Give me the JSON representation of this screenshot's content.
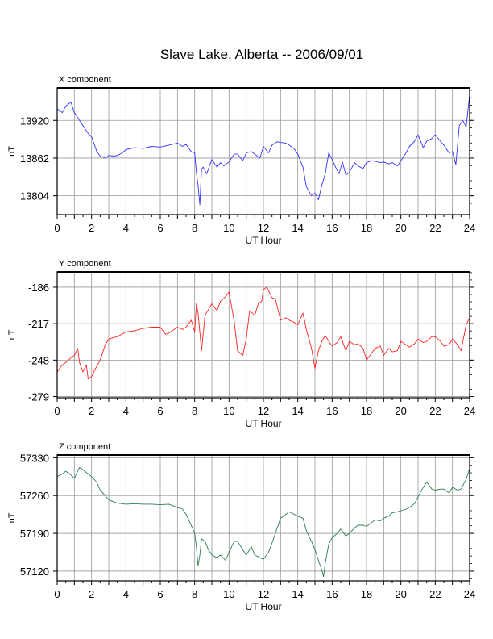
{
  "title": "Slave Lake, Alberta -- 2006/09/01",
  "colors": {
    "x": "#3333ff",
    "y": "#ff2222",
    "z": "#2e7d4f",
    "grid": "#999999"
  },
  "chart_data": [
    {
      "type": "line",
      "title": "X component",
      "xlabel": "UT Hour",
      "ylabel": "nT",
      "xlim": [
        0,
        24
      ],
      "ylim": [
        13775,
        13970
      ],
      "xticks": [
        0,
        2,
        4,
        6,
        8,
        10,
        12,
        14,
        16,
        18,
        20,
        22,
        24
      ],
      "yticks": [
        13804,
        13862,
        13920
      ],
      "grid": true,
      "series": [
        {
          "color": "#3333ff",
          "x": [
            0.0,
            0.3,
            0.5,
            0.8,
            1.0,
            1.3,
            1.5,
            1.8,
            2.0,
            2.3,
            2.5,
            2.8,
            3.0,
            3.3,
            3.5,
            3.8,
            4.0,
            4.5,
            5.0,
            5.5,
            6.0,
            6.5,
            7.0,
            7.3,
            7.5,
            7.8,
            8.0,
            8.1,
            8.2,
            8.3,
            8.4,
            8.5,
            8.7,
            9.0,
            9.3,
            9.5,
            9.7,
            10.0,
            10.3,
            10.5,
            10.8,
            11.0,
            11.3,
            11.5,
            11.8,
            12.0,
            12.3,
            12.5,
            12.8,
            13.0,
            13.3,
            13.5,
            13.8,
            14.0,
            14.3,
            14.5,
            14.8,
            15.0,
            15.2,
            15.4,
            15.6,
            15.8,
            16.0,
            16.2,
            16.4,
            16.6,
            16.8,
            17.0,
            17.3,
            17.5,
            17.8,
            18.0,
            18.3,
            18.5,
            18.8,
            19.0,
            19.3,
            19.5,
            19.8,
            20.0,
            20.3,
            20.5,
            20.8,
            21.0,
            21.3,
            21.5,
            21.8,
            22.0,
            22.3,
            22.5,
            22.8,
            23.0,
            23.2,
            23.4,
            23.6,
            23.8,
            24.0
          ],
          "y": [
            13938,
            13932,
            13942,
            13948,
            13932,
            13920,
            13912,
            13900,
            13895,
            13872,
            13865,
            13862,
            13866,
            13865,
            13866,
            13870,
            13875,
            13878,
            13877,
            13880,
            13879,
            13882,
            13885,
            13880,
            13883,
            13872,
            13870,
            13840,
            13820,
            13790,
            13845,
            13848,
            13838,
            13860,
            13848,
            13855,
            13850,
            13856,
            13868,
            13868,
            13858,
            13870,
            13872,
            13868,
            13862,
            13880,
            13870,
            13882,
            13887,
            13886,
            13885,
            13882,
            13876,
            13868,
            13848,
            13818,
            13804,
            13808,
            13798,
            13820,
            13838,
            13870,
            13860,
            13848,
            13838,
            13856,
            13836,
            13840,
            13855,
            13850,
            13846,
            13855,
            13858,
            13857,
            13855,
            13856,
            13853,
            13855,
            13850,
            13858,
            13870,
            13880,
            13888,
            13898,
            13878,
            13888,
            13892,
            13898,
            13888,
            13882,
            13870,
            13872,
            13852,
            13912,
            13920,
            13910,
            13960
          ]
        }
      ]
    },
    {
      "type": "line",
      "title": "Y component",
      "xlabel": "UT Hour",
      "ylabel": "nT",
      "xlim": [
        0,
        24
      ],
      "ylim": [
        -280,
        -173
      ],
      "xticks": [
        0,
        2,
        4,
        6,
        8,
        10,
        12,
        14,
        16,
        18,
        20,
        22,
        24
      ],
      "yticks": [
        -279,
        -248,
        -217,
        -186
      ],
      "grid": true,
      "series": [
        {
          "color": "#ff2222",
          "x": [
            0.0,
            0.3,
            0.5,
            0.8,
            1.0,
            1.2,
            1.3,
            1.5,
            1.7,
            1.8,
            2.0,
            2.2,
            2.5,
            2.8,
            3.0,
            3.5,
            4.0,
            4.5,
            5.0,
            5.5,
            6.0,
            6.3,
            6.5,
            7.0,
            7.3,
            7.5,
            7.8,
            8.0,
            8.1,
            8.2,
            8.4,
            8.6,
            8.8,
            9.0,
            9.3,
            9.5,
            9.8,
            10.0,
            10.3,
            10.5,
            10.8,
            11.0,
            11.2,
            11.5,
            11.7,
            11.9,
            12.0,
            12.2,
            12.5,
            12.7,
            13.0,
            13.3,
            13.5,
            13.8,
            14.0,
            14.3,
            14.5,
            14.8,
            15.0,
            15.2,
            15.4,
            15.6,
            15.8,
            16.0,
            16.3,
            16.5,
            16.8,
            17.0,
            17.3,
            17.5,
            17.8,
            18.0,
            18.3,
            18.5,
            18.8,
            19.0,
            19.3,
            19.5,
            19.8,
            20.0,
            20.3,
            20.5,
            20.8,
            21.0,
            21.3,
            21.5,
            21.8,
            22.0,
            22.3,
            22.5,
            22.8,
            23.0,
            23.3,
            23.5,
            23.8,
            24.0
          ],
          "y": [
            -258,
            -252,
            -250,
            -246,
            -244,
            -238,
            -250,
            -258,
            -252,
            -264,
            -262,
            -256,
            -248,
            -235,
            -230,
            -228,
            -224,
            -223,
            -221,
            -220,
            -220,
            -226,
            -225,
            -220,
            -222,
            -220,
            -214,
            -224,
            -200,
            -208,
            -240,
            -210,
            -205,
            -200,
            -206,
            -198,
            -194,
            -190,
            -215,
            -240,
            -244,
            -230,
            -206,
            -210,
            -200,
            -198,
            -188,
            -186,
            -195,
            -196,
            -214,
            -212,
            -214,
            -216,
            -218,
            -208,
            -222,
            -238,
            -255,
            -240,
            -232,
            -227,
            -232,
            -236,
            -233,
            -228,
            -240,
            -232,
            -235,
            -234,
            -238,
            -248,
            -242,
            -238,
            -236,
            -244,
            -238,
            -241,
            -240,
            -232,
            -235,
            -237,
            -234,
            -230,
            -233,
            -232,
            -228,
            -228,
            -232,
            -236,
            -235,
            -230,
            -235,
            -240,
            -218,
            -212
          ]
        }
      ]
    },
    {
      "type": "line",
      "title": "Z component",
      "xlabel": "UT Hour",
      "ylabel": "nT",
      "xlim": [
        0,
        24
      ],
      "ylim": [
        57102,
        57335
      ],
      "xticks": [
        0,
        2,
        4,
        6,
        8,
        10,
        12,
        14,
        16,
        18,
        20,
        22,
        24
      ],
      "yticks": [
        57120,
        57190,
        57260,
        57330
      ],
      "grid": true,
      "series": [
        {
          "color": "#2e7d4f",
          "x": [
            0.0,
            0.3,
            0.5,
            0.8,
            1.0,
            1.3,
            1.5,
            1.8,
            2.0,
            2.3,
            2.5,
            2.8,
            3.0,
            3.5,
            4.0,
            4.5,
            5.0,
            5.5,
            6.0,
            6.5,
            7.0,
            7.3,
            7.5,
            7.8,
            8.0,
            8.1,
            8.2,
            8.3,
            8.4,
            8.6,
            8.8,
            9.0,
            9.3,
            9.5,
            9.8,
            10.0,
            10.3,
            10.5,
            10.8,
            11.0,
            11.3,
            11.5,
            11.8,
            12.0,
            12.3,
            12.5,
            12.8,
            13.0,
            13.3,
            13.5,
            13.8,
            14.0,
            14.3,
            14.5,
            14.8,
            15.0,
            15.2,
            15.4,
            15.5,
            15.6,
            15.8,
            16.0,
            16.3,
            16.5,
            16.8,
            17.0,
            17.3,
            17.5,
            17.8,
            18.0,
            18.3,
            18.5,
            18.8,
            19.0,
            19.3,
            19.5,
            19.8,
            20.0,
            20.3,
            20.5,
            20.8,
            21.0,
            21.3,
            21.5,
            21.8,
            22.0,
            22.3,
            22.5,
            22.8,
            23.0,
            23.3,
            23.5,
            23.8,
            24.0
          ],
          "y": [
            57295,
            57300,
            57305,
            57298,
            57292,
            57312,
            57308,
            57300,
            57295,
            57285,
            57270,
            57260,
            57252,
            57246,
            57244,
            57245,
            57244,
            57244,
            57243,
            57244,
            57238,
            57235,
            57225,
            57205,
            57190,
            57165,
            57130,
            57150,
            57180,
            57175,
            57160,
            57150,
            57145,
            57150,
            57140,
            57155,
            57175,
            57175,
            57160,
            57150,
            57165,
            57150,
            57145,
            57142,
            57155,
            57172,
            57200,
            57218,
            57225,
            57230,
            57225,
            57222,
            57218,
            57195,
            57175,
            57160,
            57140,
            57122,
            57110,
            57135,
            57170,
            57182,
            57190,
            57198,
            57185,
            57190,
            57200,
            57205,
            57205,
            57203,
            57210,
            57215,
            57213,
            57218,
            57222,
            57228,
            57230,
            57232,
            57235,
            57238,
            57245,
            57258,
            57275,
            57285,
            57272,
            57270,
            57272,
            57272,
            57265,
            57275,
            57270,
            57272,
            57290,
            57310
          ]
        }
      ]
    }
  ]
}
